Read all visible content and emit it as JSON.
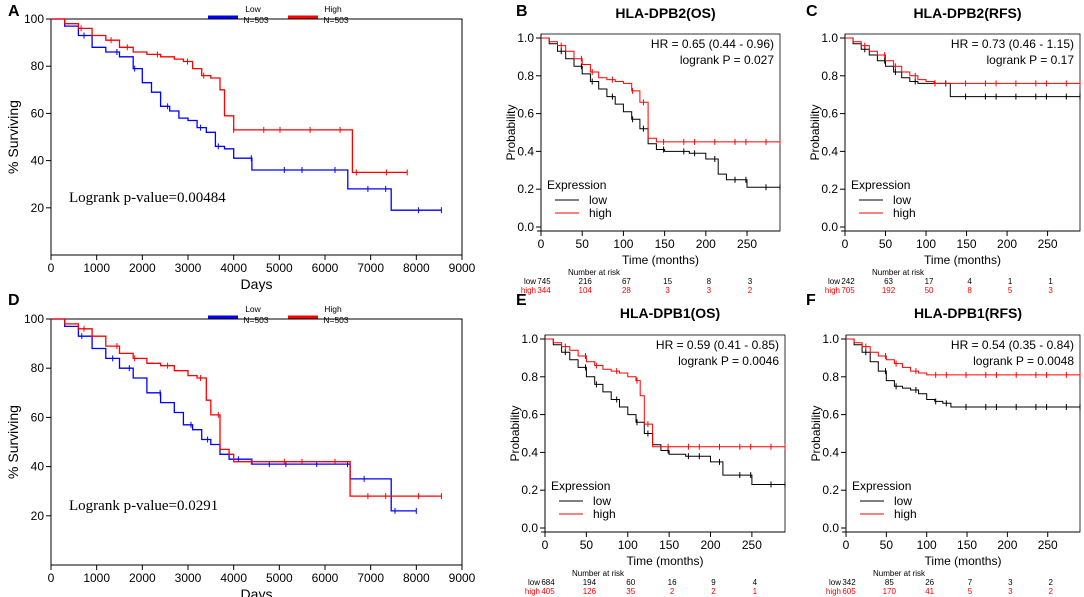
{
  "chart_data": [
    {
      "id": "A",
      "type": "line",
      "style": "gepia",
      "title": "",
      "xlabel": "Days",
      "ylabel": "% Surviving",
      "xlim": [
        0,
        9000
      ],
      "ylim": [
        0,
        100
      ],
      "xticks": [
        "0",
        "1000",
        "2000",
        "3000",
        "4000",
        "5000",
        "6000",
        "7000",
        "8000",
        "9000"
      ],
      "yticks": [
        "20",
        "40",
        "60",
        "80",
        "100"
      ],
      "annotation": "Logrank p-value=0.00484",
      "legend": [
        {
          "name": "Low",
          "n": "N=503",
          "color": "#0000ff"
        },
        {
          "name": "High",
          "n": "N=503",
          "color": "#ff0000"
        }
      ],
      "series": [
        {
          "name": "Low",
          "color": "#0000ff",
          "x": [
            0,
            300,
            600,
            900,
            1200,
            1500,
            1800,
            2000,
            2200,
            2400,
            2600,
            2800,
            3000,
            3200,
            3400,
            3600,
            3800,
            4000,
            4400,
            4800,
            5500,
            6450,
            6500,
            7400,
            7450,
            8550
          ],
          "y": [
            100,
            97,
            93,
            88,
            86,
            84,
            79,
            73,
            69,
            63,
            61,
            58,
            57,
            54,
            52,
            46,
            45,
            41,
            36,
            36,
            36,
            36,
            28,
            28,
            19,
            19
          ]
        },
        {
          "name": "High",
          "color": "#ff0000",
          "x": [
            0,
            300,
            600,
            900,
            1200,
            1500,
            1800,
            2100,
            2400,
            2700,
            2900,
            3100,
            3300,
            3500,
            3700,
            3800,
            4000,
            4500,
            5500,
            6550,
            6600,
            7800
          ],
          "y": [
            100,
            98,
            96,
            93,
            91,
            88,
            86,
            85,
            84,
            83,
            82,
            79,
            76,
            75,
            70,
            59,
            53,
            53,
            53,
            53,
            35,
            35
          ]
        }
      ]
    },
    {
      "id": "B",
      "type": "line",
      "style": "kmplot",
      "title": "HLA-DPB2(OS)",
      "xlabel": "Time (months)",
      "ylabel": "Probability",
      "xlim": [
        0,
        290
      ],
      "ylim": [
        0,
        1
      ],
      "xticks": [
        "0",
        "50",
        "100",
        "150",
        "200",
        "250"
      ],
      "yticks": [
        "0.0",
        "0.2",
        "0.4",
        "0.6",
        "0.8",
        "1.0"
      ],
      "hr": "HR = 0.65 (0.44 - 0.96)",
      "pval": "logrank P = 0.027",
      "legend_title": "Expression",
      "legend": [
        {
          "name": "low",
          "color": "#000000"
        },
        {
          "name": "high",
          "color": "#ff0000"
        }
      ],
      "risk_header": "Number at risk",
      "risk": [
        {
          "name": "low",
          "values": [
            "745",
            "216",
            "67",
            "15",
            "8",
            "3"
          ]
        },
        {
          "name": "high",
          "values": [
            "344",
            "104",
            "28",
            "3",
            "3",
            "2"
          ]
        }
      ],
      "series": [
        {
          "name": "low",
          "color": "#000000",
          "x": [
            0,
            10,
            20,
            30,
            40,
            50,
            60,
            70,
            80,
            90,
            100,
            110,
            120,
            130,
            140,
            150,
            160,
            170,
            180,
            200,
            215,
            225,
            250,
            290
          ],
          "y": [
            1.0,
            0.97,
            0.93,
            0.89,
            0.85,
            0.81,
            0.77,
            0.73,
            0.69,
            0.65,
            0.61,
            0.57,
            0.52,
            0.44,
            0.41,
            0.4,
            0.4,
            0.4,
            0.39,
            0.36,
            0.28,
            0.25,
            0.21,
            0.21
          ]
        },
        {
          "name": "high",
          "color": "#ff0000",
          "x": [
            0,
            10,
            20,
            30,
            40,
            50,
            60,
            70,
            80,
            90,
            100,
            110,
            120,
            130,
            140,
            150,
            200,
            290
          ],
          "y": [
            1.0,
            0.98,
            0.96,
            0.93,
            0.89,
            0.86,
            0.82,
            0.79,
            0.78,
            0.77,
            0.76,
            0.72,
            0.66,
            0.47,
            0.45,
            0.45,
            0.45,
            0.45
          ]
        }
      ]
    },
    {
      "id": "C",
      "type": "line",
      "style": "kmplot",
      "title": "HLA-DPB2(RFS)",
      "xlabel": "Time (months)",
      "ylabel": "Probability",
      "xlim": [
        0,
        290
      ],
      "ylim": [
        0,
        1
      ],
      "xticks": [
        "0",
        "50",
        "100",
        "150",
        "200",
        "250"
      ],
      "yticks": [
        "0.0",
        "0.2",
        "0.4",
        "0.6",
        "0.8",
        "1.0"
      ],
      "hr": "HR = 0.73 (0.46 - 1.15)",
      "pval": "logrank P = 0.17",
      "legend_title": "Expression",
      "legend": [
        {
          "name": "low",
          "color": "#000000"
        },
        {
          "name": "high",
          "color": "#ff0000"
        }
      ],
      "risk_header": "Number at risk",
      "risk": [
        {
          "name": "low",
          "values": [
            "242",
            "63",
            "17",
            "4",
            "1",
            "1"
          ]
        },
        {
          "name": "high",
          "values": [
            "705",
            "192",
            "50",
            "8",
            "5",
            "3"
          ]
        }
      ],
      "series": [
        {
          "name": "low",
          "color": "#000000",
          "x": [
            0,
            10,
            20,
            30,
            40,
            50,
            60,
            70,
            80,
            90,
            100,
            110,
            120,
            130,
            150,
            200,
            290
          ],
          "y": [
            1.0,
            0.97,
            0.94,
            0.91,
            0.88,
            0.85,
            0.82,
            0.79,
            0.77,
            0.76,
            0.76,
            0.76,
            0.76,
            0.69,
            0.69,
            0.69,
            0.69
          ]
        },
        {
          "name": "high",
          "color": "#ff0000",
          "x": [
            0,
            10,
            20,
            30,
            40,
            50,
            60,
            70,
            80,
            90,
            100,
            110,
            150,
            290
          ],
          "y": [
            1.0,
            0.98,
            0.96,
            0.93,
            0.91,
            0.88,
            0.85,
            0.82,
            0.8,
            0.78,
            0.77,
            0.76,
            0.76,
            0.76
          ]
        }
      ]
    },
    {
      "id": "D",
      "type": "line",
      "style": "gepia",
      "title": "",
      "xlabel": "Days",
      "ylabel": "% Surviving",
      "xlim": [
        0,
        9000
      ],
      "ylim": [
        0,
        100
      ],
      "xticks": [
        "0",
        "1000",
        "2000",
        "3000",
        "4000",
        "5000",
        "6000",
        "7000",
        "8000",
        "9000"
      ],
      "yticks": [
        "20",
        "40",
        "60",
        "80",
        "100"
      ],
      "annotation": "Logrank p-value=0.0291",
      "legend": [
        {
          "name": "Low",
          "n": "N=503",
          "color": "#0000ff"
        },
        {
          "name": "High",
          "n": "N=503",
          "color": "#ff0000"
        }
      ],
      "series": [
        {
          "name": "Low",
          "color": "#0000ff",
          "x": [
            0,
            300,
            600,
            900,
            1200,
            1500,
            1800,
            2100,
            2400,
            2700,
            2900,
            3100,
            3300,
            3500,
            3700,
            3900,
            4300,
            4400,
            5500,
            6450,
            6550,
            7400,
            7450,
            8000
          ],
          "y": [
            100,
            97,
            93,
            88,
            84,
            80,
            76,
            70,
            66,
            62,
            57,
            55,
            51,
            49,
            45,
            43,
            43,
            41,
            41,
            41,
            35,
            35,
            22,
            22
          ]
        },
        {
          "name": "High",
          "color": "#ff0000",
          "x": [
            0,
            300,
            600,
            900,
            1200,
            1500,
            1800,
            2100,
            2400,
            2700,
            3000,
            3200,
            3400,
            3500,
            3700,
            3900,
            4000,
            5000,
            6500,
            6550,
            8550
          ],
          "y": [
            100,
            98,
            96,
            93,
            89,
            86,
            84,
            82,
            81,
            79,
            77,
            76,
            67,
            61,
            47,
            45,
            42,
            42,
            42,
            28,
            28
          ]
        }
      ]
    },
    {
      "id": "E",
      "type": "line",
      "style": "kmplot",
      "title": "HLA-DPB1(OS)",
      "xlabel": "Time (months)",
      "ylabel": "Probability",
      "xlim": [
        0,
        290
      ],
      "ylim": [
        0,
        1
      ],
      "xticks": [
        "0",
        "50",
        "100",
        "150",
        "200",
        "250"
      ],
      "yticks": [
        "0.0",
        "0.2",
        "0.4",
        "0.6",
        "0.8",
        "1.0"
      ],
      "hr": "HR = 0.59 (0.41 - 0.85)",
      "pval": "logrank P = 0.0046",
      "legend_title": "Expression",
      "legend": [
        {
          "name": "low",
          "color": "#000000"
        },
        {
          "name": "high",
          "color": "#ff0000"
        }
      ],
      "risk_header": "Number at risk",
      "risk": [
        {
          "name": "low",
          "values": [
            "684",
            "194",
            "60",
            "16",
            "9",
            "4"
          ]
        },
        {
          "name": "high",
          "values": [
            "405",
            "126",
            "35",
            "2",
            "2",
            "1"
          ]
        }
      ],
      "series": [
        {
          "name": "low",
          "color": "#000000",
          "x": [
            0,
            10,
            20,
            30,
            40,
            50,
            60,
            70,
            80,
            90,
            100,
            110,
            120,
            130,
            140,
            150,
            170,
            200,
            215,
            250,
            290
          ],
          "y": [
            1.0,
            0.97,
            0.93,
            0.89,
            0.85,
            0.8,
            0.76,
            0.72,
            0.68,
            0.64,
            0.6,
            0.56,
            0.5,
            0.44,
            0.41,
            0.39,
            0.38,
            0.35,
            0.28,
            0.23,
            0.23
          ]
        },
        {
          "name": "high",
          "color": "#ff0000",
          "x": [
            0,
            10,
            20,
            30,
            40,
            50,
            60,
            70,
            80,
            90,
            100,
            110,
            115,
            120,
            130,
            150,
            290
          ],
          "y": [
            1.0,
            0.98,
            0.96,
            0.94,
            0.91,
            0.88,
            0.86,
            0.84,
            0.83,
            0.82,
            0.8,
            0.78,
            0.7,
            0.55,
            0.43,
            0.43,
            0.43
          ]
        }
      ]
    },
    {
      "id": "F",
      "type": "line",
      "style": "kmplot",
      "title": "HLA-DPB1(RFS)",
      "xlabel": "Time (months)",
      "ylabel": "Probability",
      "xlim": [
        0,
        290
      ],
      "ylim": [
        0,
        1
      ],
      "xticks": [
        "0",
        "50",
        "100",
        "150",
        "200",
        "250"
      ],
      "yticks": [
        "0.0",
        "0.2",
        "0.4",
        "0.6",
        "0.8",
        "1.0"
      ],
      "hr": "HR = 0.54 (0.35 - 0.84)",
      "pval": "logrank P = 0.0048",
      "legend_title": "Expression",
      "legend": [
        {
          "name": "low",
          "color": "#000000"
        },
        {
          "name": "high",
          "color": "#ff0000"
        }
      ],
      "risk_header": "Number at risk",
      "risk": [
        {
          "name": "low",
          "values": [
            "342",
            "85",
            "26",
            "7",
            "3",
            "2"
          ]
        },
        {
          "name": "high",
          "values": [
            "605",
            "170",
            "41",
            "5",
            "3",
            "2"
          ]
        }
      ],
      "series": [
        {
          "name": "low",
          "color": "#000000",
          "x": [
            0,
            10,
            20,
            30,
            40,
            50,
            60,
            70,
            80,
            90,
            100,
            110,
            120,
            130,
            150,
            290
          ],
          "y": [
            1.0,
            0.97,
            0.93,
            0.88,
            0.83,
            0.78,
            0.75,
            0.74,
            0.73,
            0.71,
            0.68,
            0.67,
            0.66,
            0.64,
            0.64,
            0.64
          ]
        },
        {
          "name": "high",
          "color": "#ff0000",
          "x": [
            0,
            10,
            20,
            30,
            40,
            50,
            60,
            70,
            80,
            90,
            100,
            150,
            290
          ],
          "y": [
            1.0,
            0.98,
            0.96,
            0.93,
            0.91,
            0.89,
            0.87,
            0.85,
            0.83,
            0.82,
            0.81,
            0.81,
            0.81
          ]
        }
      ]
    }
  ]
}
